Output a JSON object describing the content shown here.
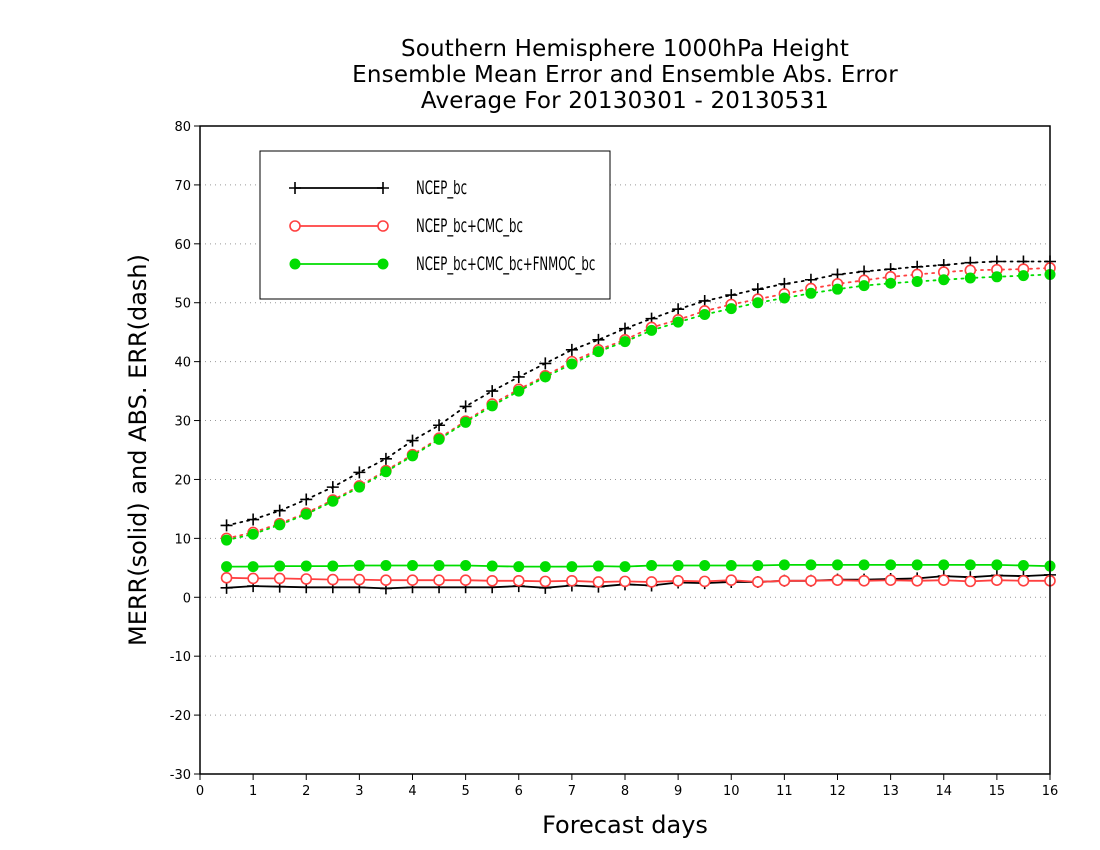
{
  "chart_data": {
    "type": "line",
    "title": [
      "Southern Hemisphere 1000hPa Height",
      "Ensemble Mean Error and Ensemble Abs. Error",
      "Average For 20130301 - 20130531"
    ],
    "xlabel": "Forecast days",
    "ylabel": "MERR(solid) and ABS. ERR(dash)",
    "xlim": [
      0,
      16
    ],
    "ylim": [
      -30,
      80
    ],
    "xticks": [
      0,
      1,
      2,
      3,
      4,
      5,
      6,
      7,
      8,
      9,
      10,
      11,
      12,
      13,
      14,
      15,
      16
    ],
    "yticks": [
      -30,
      -20,
      -10,
      0,
      10,
      20,
      30,
      40,
      50,
      60,
      70,
      80
    ],
    "grid": "horizontal dotted",
    "legend_position": "top-left",
    "x": [
      0.5,
      1,
      1.5,
      2,
      2.5,
      3,
      3.5,
      4,
      4.5,
      5,
      5.5,
      6,
      6.5,
      7,
      7.5,
      8,
      8.5,
      9,
      9.5,
      10,
      10.5,
      11,
      11.5,
      12,
      12.5,
      13,
      13.5,
      14,
      14.5,
      15,
      15.5,
      16
    ],
    "series": [
      {
        "name": "NCEP_bc",
        "color": "#000000",
        "marker": "plus",
        "merr": [
          1.6,
          1.9,
          1.8,
          1.7,
          1.7,
          1.7,
          1.5,
          1.7,
          1.7,
          1.7,
          1.7,
          1.9,
          1.6,
          2.0,
          1.8,
          2.2,
          2.0,
          2.5,
          2.4,
          2.6,
          2.6,
          2.8,
          2.8,
          3.0,
          3.0,
          3.1,
          3.2,
          3.6,
          3.4,
          3.7,
          3.6,
          3.8
        ],
        "abserr": [
          12.2,
          13.2,
          14.7,
          16.6,
          18.7,
          21.2,
          23.5,
          26.6,
          29.2,
          32.4,
          35.0,
          37.4,
          39.7,
          42.0,
          43.7,
          45.6,
          47.3,
          48.9,
          50.3,
          51.3,
          52.3,
          53.2,
          53.9,
          54.8,
          55.3,
          55.7,
          56.1,
          56.4,
          56.8,
          57.0,
          57.0,
          57.0
        ]
      },
      {
        "name": "NCEP_bc+CMC_bc",
        "color": "#ff4040",
        "marker": "open-circle",
        "merr": [
          3.3,
          3.2,
          3.2,
          3.1,
          3.0,
          3.0,
          2.9,
          2.9,
          2.9,
          2.9,
          2.8,
          2.8,
          2.7,
          2.8,
          2.6,
          2.7,
          2.6,
          2.8,
          2.7,
          2.9,
          2.6,
          2.8,
          2.8,
          2.9,
          2.8,
          2.9,
          2.8,
          2.9,
          2.7,
          2.9,
          2.8,
          2.8
        ],
        "abserr": [
          10.0,
          11.0,
          12.5,
          14.3,
          16.5,
          18.9,
          21.5,
          24.2,
          27.0,
          29.9,
          32.8,
          35.3,
          37.6,
          40.0,
          42.0,
          43.7,
          45.8,
          47.1,
          48.6,
          49.7,
          50.6,
          51.5,
          52.4,
          53.2,
          53.8,
          54.4,
          54.8,
          55.2,
          55.5,
          55.6,
          55.7,
          55.9
        ]
      },
      {
        "name": "NCEP_bc+CMC_bc+FNMOC_bc",
        "color": "#00dd00",
        "marker": "filled-circle",
        "merr": [
          5.2,
          5.2,
          5.3,
          5.3,
          5.3,
          5.4,
          5.4,
          5.4,
          5.4,
          5.4,
          5.3,
          5.2,
          5.2,
          5.2,
          5.3,
          5.2,
          5.4,
          5.4,
          5.4,
          5.4,
          5.4,
          5.5,
          5.5,
          5.5,
          5.5,
          5.5,
          5.5,
          5.5,
          5.5,
          5.5,
          5.4,
          5.3
        ],
        "abserr": [
          9.7,
          10.7,
          12.3,
          14.1,
          16.3,
          18.7,
          21.3,
          24.0,
          26.8,
          29.7,
          32.5,
          35.0,
          37.4,
          39.6,
          41.7,
          43.4,
          45.3,
          46.7,
          48.0,
          49.0,
          50.0,
          50.8,
          51.6,
          52.3,
          52.9,
          53.3,
          53.6,
          53.9,
          54.2,
          54.4,
          54.6,
          54.8
        ]
      }
    ]
  }
}
